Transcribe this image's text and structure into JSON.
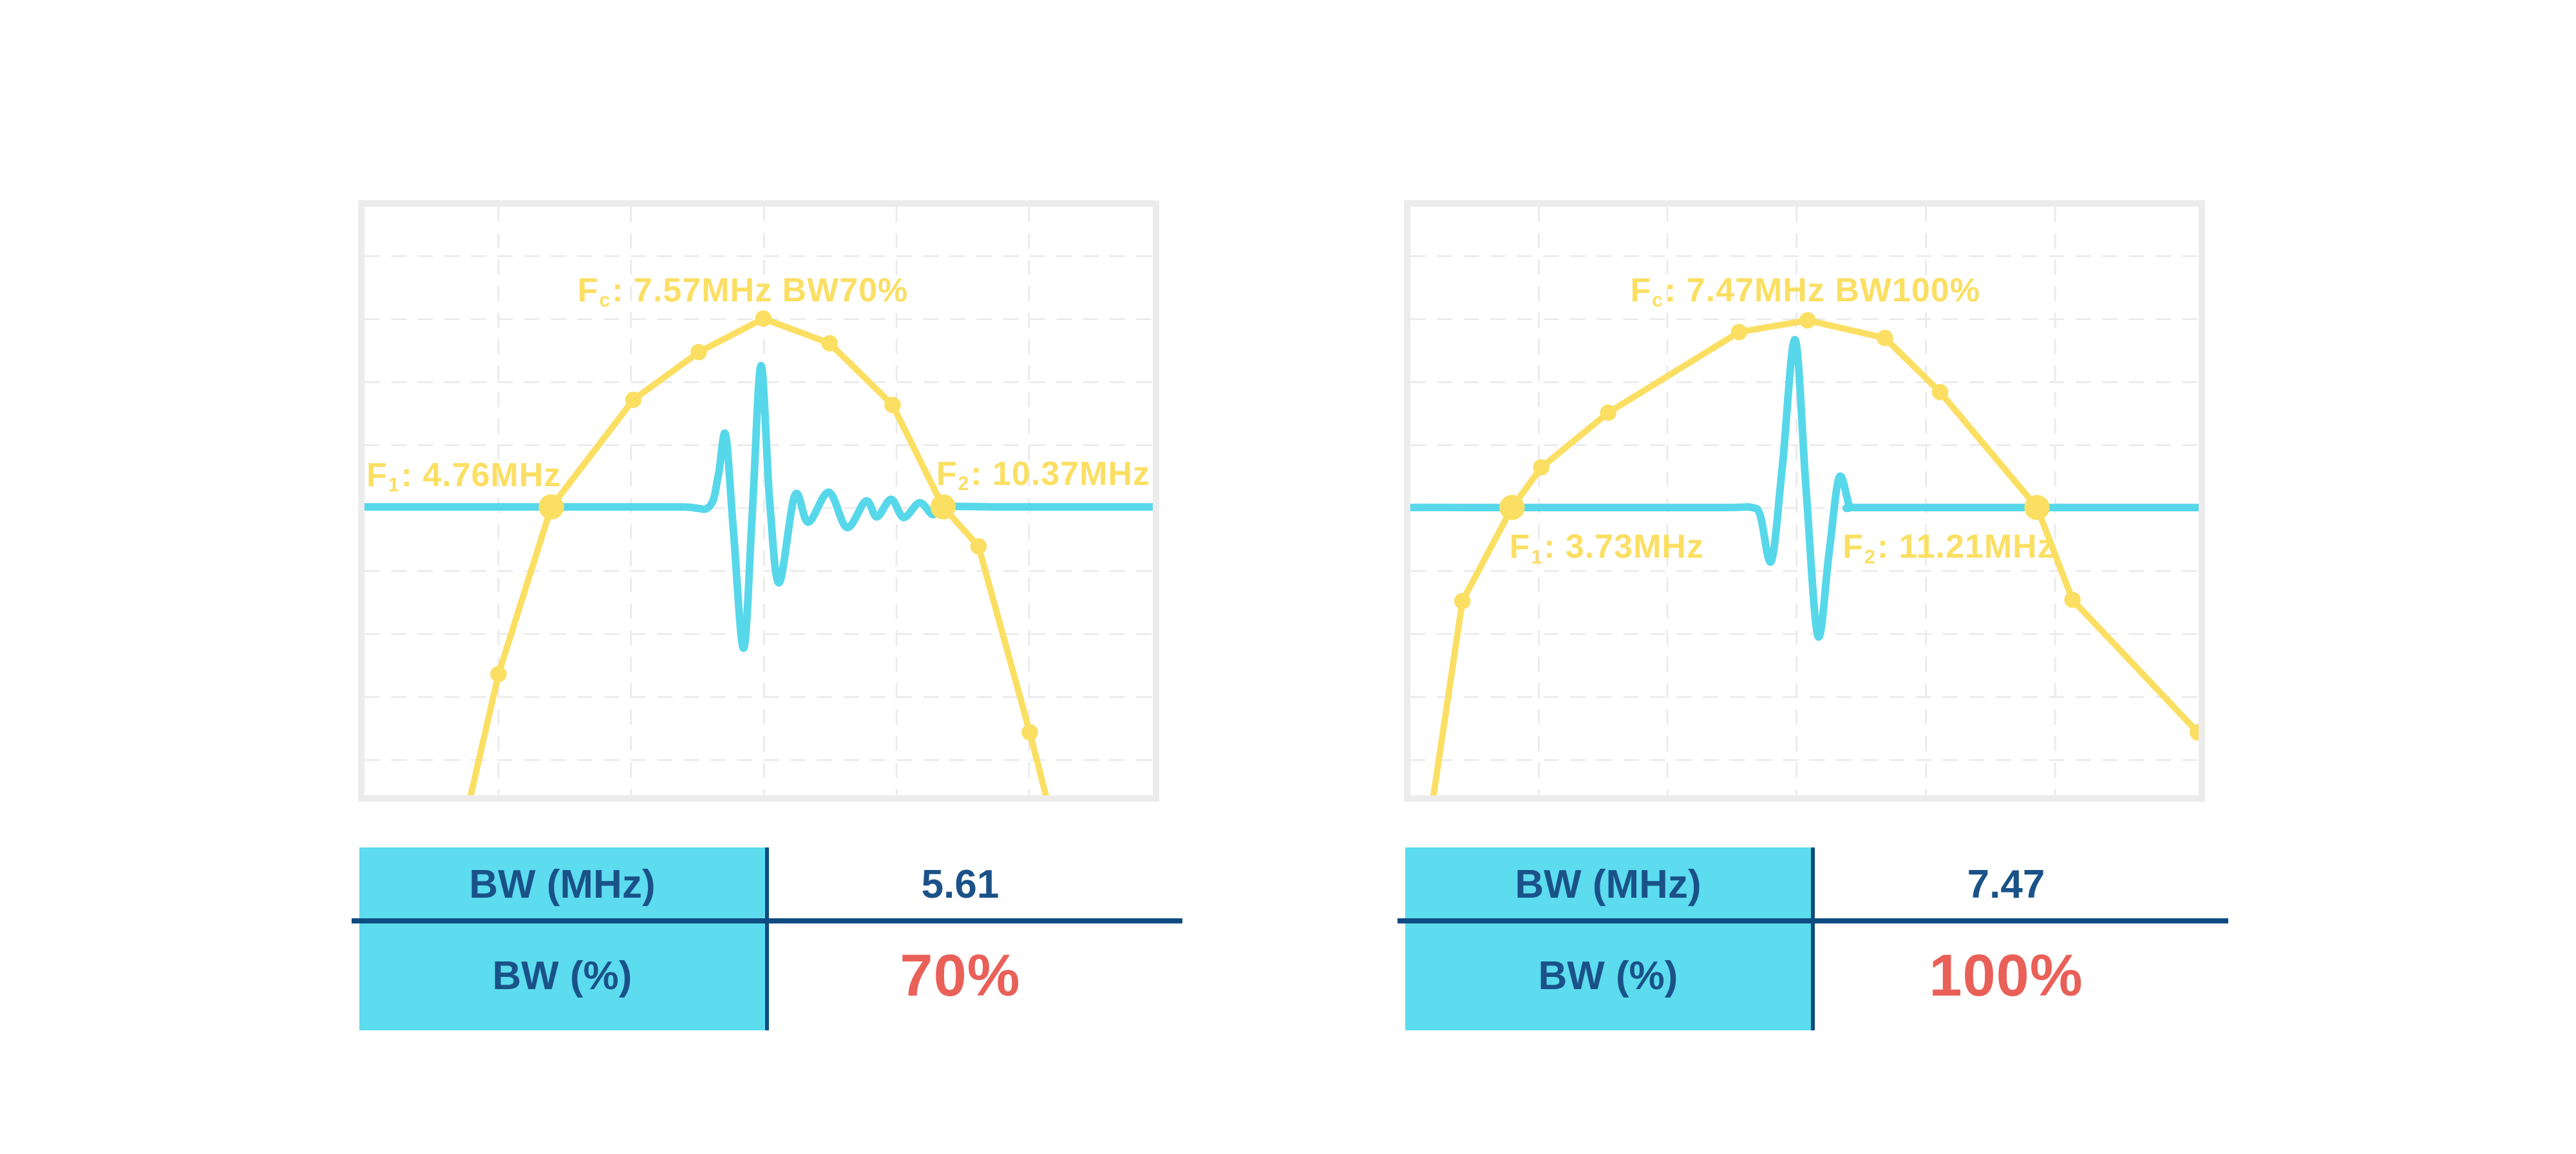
{
  "colors": {
    "yellow": "#FBDF63",
    "pulse_cyan": "#57D7EA",
    "table_cyan": "#5CDCEE",
    "navy_text": "#1A5288",
    "navy_line": "#0F4C81",
    "red": "#E96058",
    "grid": "#EBEBEB",
    "frame": "#ECECEC",
    "pale_topline": "#DDF0F4"
  },
  "chart_data": [
    {
      "type": "line",
      "title": "Fc: 7.57MHz BW70%",
      "values": {
        "fc_mhz": 7.57,
        "f1_mhz": 4.76,
        "f2_mhz": 10.37,
        "bw_mhz": 5.61,
        "bw_pct": 70
      },
      "annotations": {
        "fc": {
          "prefix": "F",
          "sub": "c",
          "rest": ": 7.57MHz BW70%"
        },
        "f1": {
          "prefix": "F",
          "sub": "1",
          "rest": ": 4.76MHz"
        },
        "f2": {
          "prefix": "F",
          "sub": "2",
          "rest": ": 10.37MHz"
        }
      },
      "grid_x": [
        0.17,
        0.338,
        0.507,
        0.675,
        0.843
      ],
      "grid_y": [
        0.084,
        0.191,
        0.298,
        0.405,
        0.512,
        0.619,
        0.726,
        0.833,
        0.94
      ],
      "spectrum": [
        {
          "x": 0.128,
          "y": 1.04,
          "m": "none"
        },
        {
          "x": 0.17,
          "y": 0.794,
          "m": "dot"
        },
        {
          "x": 0.237,
          "y": 0.51,
          "m": "big"
        },
        {
          "x": 0.341,
          "y": 0.328,
          "m": "dot"
        },
        {
          "x": 0.424,
          "y": 0.247,
          "m": "dot"
        },
        {
          "x": 0.506,
          "y": 0.19,
          "m": "dot"
        },
        {
          "x": 0.59,
          "y": 0.232,
          "m": "dot"
        },
        {
          "x": 0.67,
          "y": 0.337,
          "m": "dot"
        },
        {
          "x": 0.734,
          "y": 0.51,
          "m": "big"
        },
        {
          "x": 0.779,
          "y": 0.577,
          "m": "dot"
        },
        {
          "x": 0.844,
          "y": 0.893,
          "m": "dot"
        },
        {
          "x": 0.872,
          "y": 1.04,
          "m": "none"
        }
      ],
      "pulse_baseline": 0.51,
      "pulse": [
        [
          0.0,
          0.51
        ],
        [
          0.25,
          0.51
        ],
        [
          0.4,
          0.51
        ],
        [
          0.437,
          0.51
        ],
        [
          0.449,
          0.455
        ],
        [
          0.458,
          0.387
        ],
        [
          0.468,
          0.55
        ],
        [
          0.481,
          0.75
        ],
        [
          0.492,
          0.52
        ],
        [
          0.503,
          0.27
        ],
        [
          0.514,
          0.5
        ],
        [
          0.526,
          0.639
        ],
        [
          0.546,
          0.49
        ],
        [
          0.563,
          0.536
        ],
        [
          0.589,
          0.485
        ],
        [
          0.612,
          0.545
        ],
        [
          0.636,
          0.5
        ],
        [
          0.65,
          0.527
        ],
        [
          0.668,
          0.497
        ],
        [
          0.684,
          0.528
        ],
        [
          0.704,
          0.503
        ],
        [
          0.721,
          0.523
        ],
        [
          0.734,
          0.51
        ],
        [
          0.8,
          0.51
        ],
        [
          0.9,
          0.51
        ],
        [
          1.0,
          0.51
        ]
      ],
      "table": {
        "rows": [
          {
            "label": "BW (MHz)",
            "value": "5.61"
          },
          {
            "label": "BW (%)",
            "value": "70%"
          }
        ]
      }
    },
    {
      "type": "line",
      "title": "Fc: 7.47MHz BW100%",
      "values": {
        "fc_mhz": 7.47,
        "f1_mhz": 3.73,
        "f2_mhz": 11.21,
        "bw_mhz": 7.47,
        "bw_pct": 100
      },
      "annotations": {
        "fc": {
          "prefix": "F",
          "sub": "c",
          "rest": ": 7.47MHz BW100%"
        },
        "f1": {
          "prefix": "F",
          "sub": "1",
          "rest": ": 3.73MHz"
        },
        "f2": {
          "prefix": "F",
          "sub": "2",
          "rest": ": 11.21MHz"
        }
      },
      "grid_x": [
        0.163,
        0.326,
        0.49,
        0.654,
        0.818
      ],
      "grid_y": [
        0.084,
        0.191,
        0.298,
        0.405,
        0.512,
        0.619,
        0.726,
        0.833,
        0.94
      ],
      "spectrum": [
        {
          "x": 0.025,
          "y": 1.04,
          "m": "none"
        },
        {
          "x": 0.066,
          "y": 0.67,
          "m": "dot"
        },
        {
          "x": 0.129,
          "y": 0.511,
          "m": "big"
        },
        {
          "x": 0.166,
          "y": 0.443,
          "m": "dot"
        },
        {
          "x": 0.251,
          "y": 0.35,
          "m": "dot"
        },
        {
          "x": 0.417,
          "y": 0.213,
          "m": "dot"
        },
        {
          "x": 0.504,
          "y": 0.193,
          "m": "dot"
        },
        {
          "x": 0.602,
          "y": 0.223,
          "m": "dot"
        },
        {
          "x": 0.672,
          "y": 0.315,
          "m": "dot"
        },
        {
          "x": 0.795,
          "y": 0.511,
          "m": "big"
        },
        {
          "x": 0.84,
          "y": 0.668,
          "m": "dot"
        },
        {
          "x": 0.999,
          "y": 0.893,
          "m": "dot"
        }
      ],
      "pulse_baseline": 0.511,
      "pulse": [
        [
          0.0,
          0.511
        ],
        [
          0.25,
          0.511
        ],
        [
          0.4,
          0.511
        ],
        [
          0.433,
          0.511
        ],
        [
          0.444,
          0.525
        ],
        [
          0.458,
          0.602
        ],
        [
          0.472,
          0.44
        ],
        [
          0.488,
          0.226
        ],
        [
          0.502,
          0.48
        ],
        [
          0.517,
          0.729
        ],
        [
          0.531,
          0.59
        ],
        [
          0.544,
          0.46
        ],
        [
          0.557,
          0.508
        ],
        [
          0.565,
          0.511
        ],
        [
          0.7,
          0.511
        ],
        [
          0.85,
          0.511
        ],
        [
          1.0,
          0.511
        ]
      ],
      "table": {
        "rows": [
          {
            "label": "BW (MHz)",
            "value": "7.47"
          },
          {
            "label": "BW (%)",
            "value": "100%"
          }
        ]
      }
    }
  ]
}
